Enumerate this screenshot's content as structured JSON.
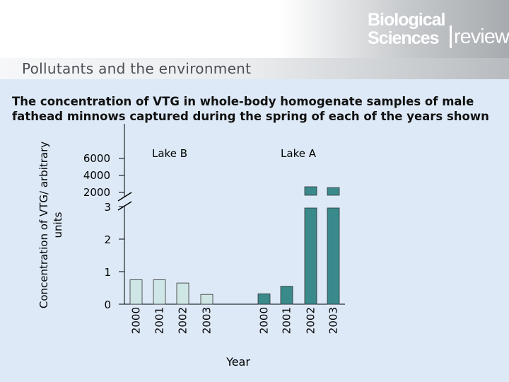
{
  "header": {
    "section_title": "Pollutants and the environment",
    "logo": {
      "line1": "Biological",
      "line2": "Sciences",
      "line3": "review"
    }
  },
  "caption": "The concentration of VTG in whole-body homogenate samples of male fathead minnows captured during the spring of each of the years shown",
  "colors": {
    "lake_b_bar": "#cfe6e6",
    "lake_a_bar": "#3a8a8c",
    "background": "#dde9f7"
  },
  "chart_data": {
    "type": "bar",
    "title": "",
    "ylabel": "Concentration of VTG/ arbitrary units",
    "xlabel": "Year",
    "axis_break": true,
    "lower_segment": {
      "ylim": [
        0,
        3
      ],
      "ticks": [
        "0",
        "1",
        "2",
        "3"
      ]
    },
    "upper_segment": {
      "ticks": [
        "2000",
        "4000",
        "6000"
      ]
    },
    "groups": [
      {
        "name": "Lake B",
        "categories": [
          "2000",
          "2001",
          "2002",
          "2003"
        ],
        "values": [
          0.75,
          0.75,
          0.65,
          0.3
        ]
      },
      {
        "name": "Lake A",
        "categories": [
          "2000",
          "2001",
          "2002",
          "2003"
        ],
        "values": [
          0.32,
          0.55,
          2500,
          2400
        ]
      }
    ],
    "grid": false
  }
}
